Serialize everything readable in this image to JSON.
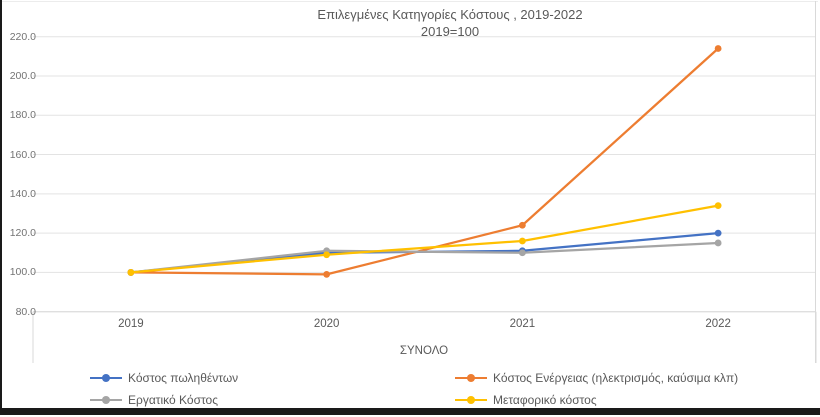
{
  "chart": {
    "title": "Επιλεγμένες Κατηγορίες Κόστους , 2019-2022",
    "subtitle": "2019=100",
    "axis_field_label": "ΣΥΝΟΛΟ"
  },
  "chart_data": {
    "type": "line",
    "title": "Επιλεγμένες Κατηγορίες Κόστους , 2019-2022",
    "subtitle": "2019=100",
    "xlabel": "ΣΥΝΟΛΟ",
    "ylabel": "",
    "categories": [
      "2019",
      "2020",
      "2021",
      "2022"
    ],
    "series": [
      {
        "name": "Κόστος πωληθέντων",
        "color": "#4472C4",
        "values": [
          100.0,
          110.0,
          111.0,
          120.0
        ]
      },
      {
        "name": "Κόστος Ενέργειας (ηλεκτρισμός, καύσιμα κλπ)",
        "color": "#ED7D31",
        "values": [
          100.0,
          99.0,
          124.0,
          214.0
        ]
      },
      {
        "name": "Εργατικό Κόστος",
        "color": "#A5A5A5",
        "values": [
          100.0,
          111.0,
          110.0,
          115.0
        ]
      },
      {
        "name": "Μεταφορικό κόστος",
        "color": "#FFC000",
        "values": [
          100.0,
          109.0,
          116.0,
          134.0
        ]
      }
    ],
    "ylim": [
      80,
      220
    ],
    "yticks": [
      220.0,
      200.0,
      180.0,
      160.0,
      140.0,
      120.0,
      100.0,
      80.0
    ],
    "ytick_format": "one_decimal",
    "grid": true,
    "legend_position": "bottom",
    "colors": {
      "gridline": "#e3e3e3",
      "axis_line": "#d9d9d9",
      "text": "#595959",
      "tick_text": "#737373"
    }
  }
}
